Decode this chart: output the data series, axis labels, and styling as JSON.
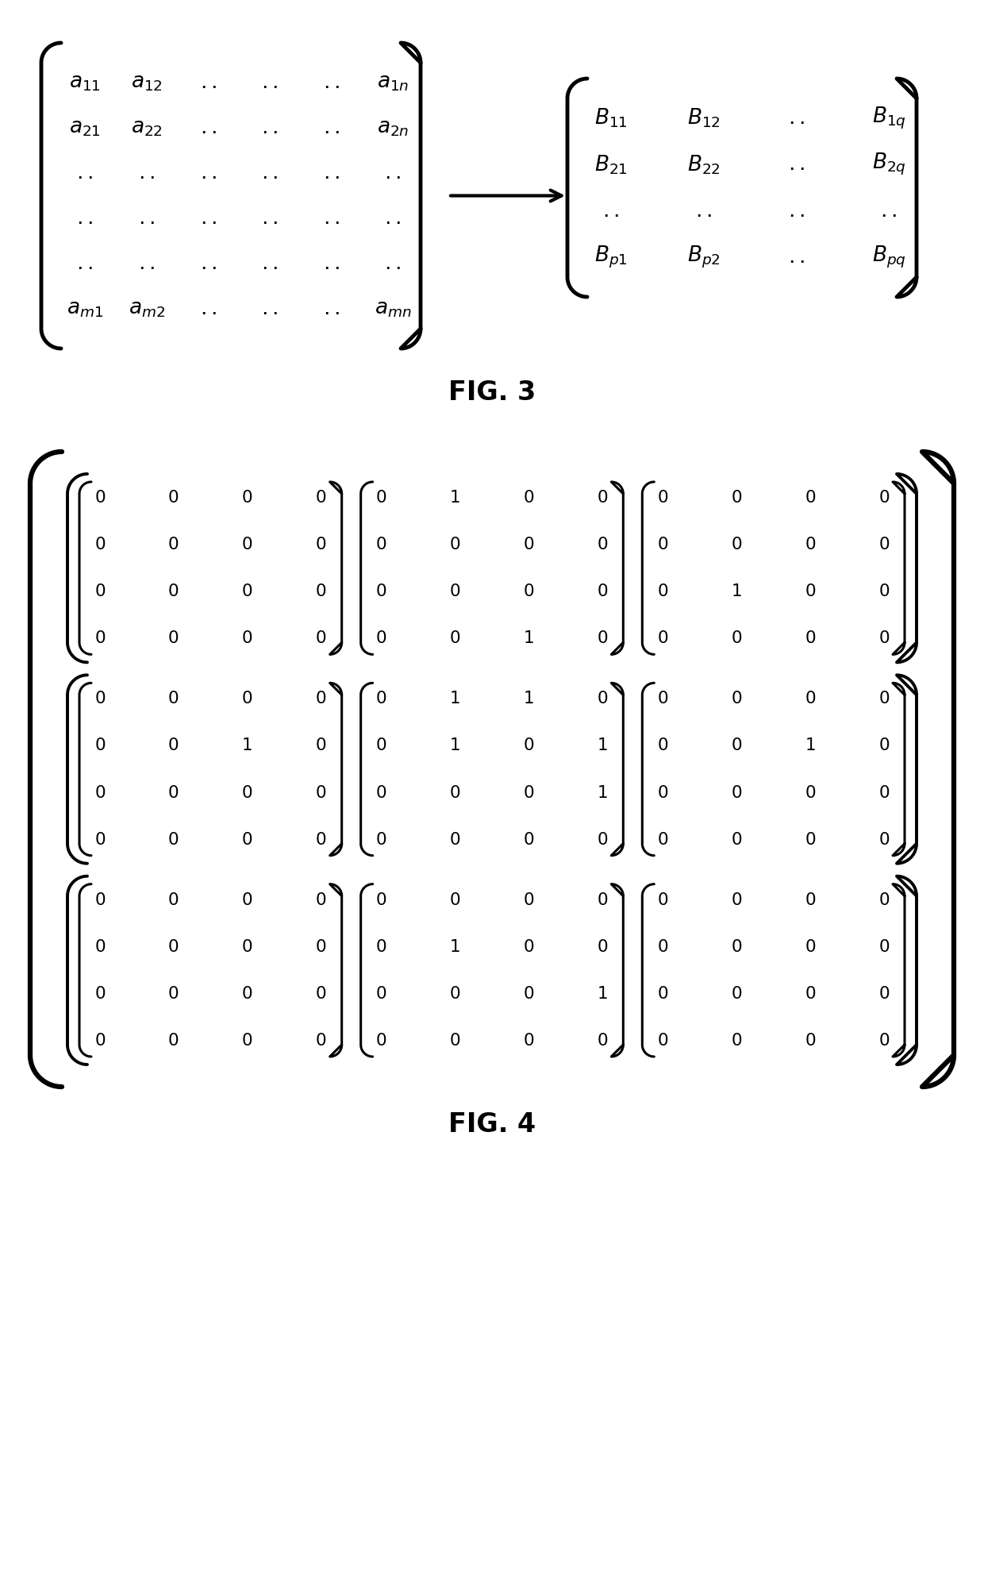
{
  "fig3": {
    "matrix_A": {
      "rows": [
        [
          "a_{11}",
          "a_{12}",
          "..",
          "..",
          "..",
          "a_{1n}"
        ],
        [
          "a_{21}",
          "a_{22}",
          "..",
          "..",
          "..",
          "a_{2n}"
        ],
        [
          "..",
          "..",
          "..",
          "..",
          "..",
          ".."
        ],
        [
          "..",
          "..",
          "..",
          "..",
          "..",
          ".."
        ],
        [
          "..",
          "..",
          "..",
          "..",
          "..",
          ".."
        ],
        [
          "a_{m1}",
          "a_{m2}",
          "..",
          "..",
          "..",
          "a_{mn}"
        ]
      ]
    },
    "matrix_B": {
      "rows": [
        [
          "B_{11}",
          "B_{12}",
          "..",
          "B_{1q}"
        ],
        [
          "B_{21}",
          "B_{22}",
          "..",
          "B_{2q}"
        ],
        [
          "..",
          "..",
          "..",
          ".."
        ],
        [
          "B_{p1}",
          "B_{p2}",
          "..",
          "B_{pq}"
        ]
      ]
    },
    "caption": "FIG. 3"
  },
  "fig4": {
    "blocks": [
      [
        [
          [
            0,
            0,
            0,
            0
          ],
          [
            0,
            0,
            0,
            0
          ],
          [
            0,
            0,
            0,
            0
          ],
          [
            0,
            0,
            0,
            0
          ]
        ],
        [
          [
            0,
            1,
            0,
            0
          ],
          [
            0,
            0,
            0,
            0
          ],
          [
            0,
            0,
            0,
            0
          ],
          [
            0,
            0,
            1,
            0
          ]
        ],
        [
          [
            0,
            0,
            0,
            0
          ],
          [
            0,
            0,
            0,
            0
          ],
          [
            0,
            1,
            0,
            0
          ],
          [
            0,
            0,
            0,
            0
          ]
        ]
      ],
      [
        [
          [
            0,
            0,
            0,
            0
          ],
          [
            0,
            0,
            1,
            0
          ],
          [
            0,
            0,
            0,
            0
          ],
          [
            0,
            0,
            0,
            0
          ]
        ],
        [
          [
            0,
            1,
            1,
            0
          ],
          [
            0,
            1,
            0,
            1
          ],
          [
            0,
            0,
            0,
            1
          ],
          [
            0,
            0,
            0,
            0
          ]
        ],
        [
          [
            0,
            0,
            0,
            0
          ],
          [
            0,
            0,
            1,
            0
          ],
          [
            0,
            0,
            0,
            0
          ],
          [
            0,
            0,
            0,
            0
          ]
        ]
      ],
      [
        [
          [
            0,
            0,
            0,
            0
          ],
          [
            0,
            0,
            0,
            0
          ],
          [
            0,
            0,
            0,
            0
          ],
          [
            0,
            0,
            0,
            0
          ]
        ],
        [
          [
            0,
            0,
            0,
            0
          ],
          [
            0,
            1,
            0,
            0
          ],
          [
            0,
            0,
            0,
            1
          ],
          [
            0,
            0,
            0,
            0
          ]
        ],
        [
          [
            0,
            0,
            0,
            0
          ],
          [
            0,
            0,
            0,
            0
          ],
          [
            0,
            0,
            0,
            0
          ],
          [
            0,
            0,
            0,
            0
          ]
        ]
      ]
    ],
    "caption": "FIG. 4"
  },
  "background_color": "#ffffff",
  "text_color": "#000000"
}
